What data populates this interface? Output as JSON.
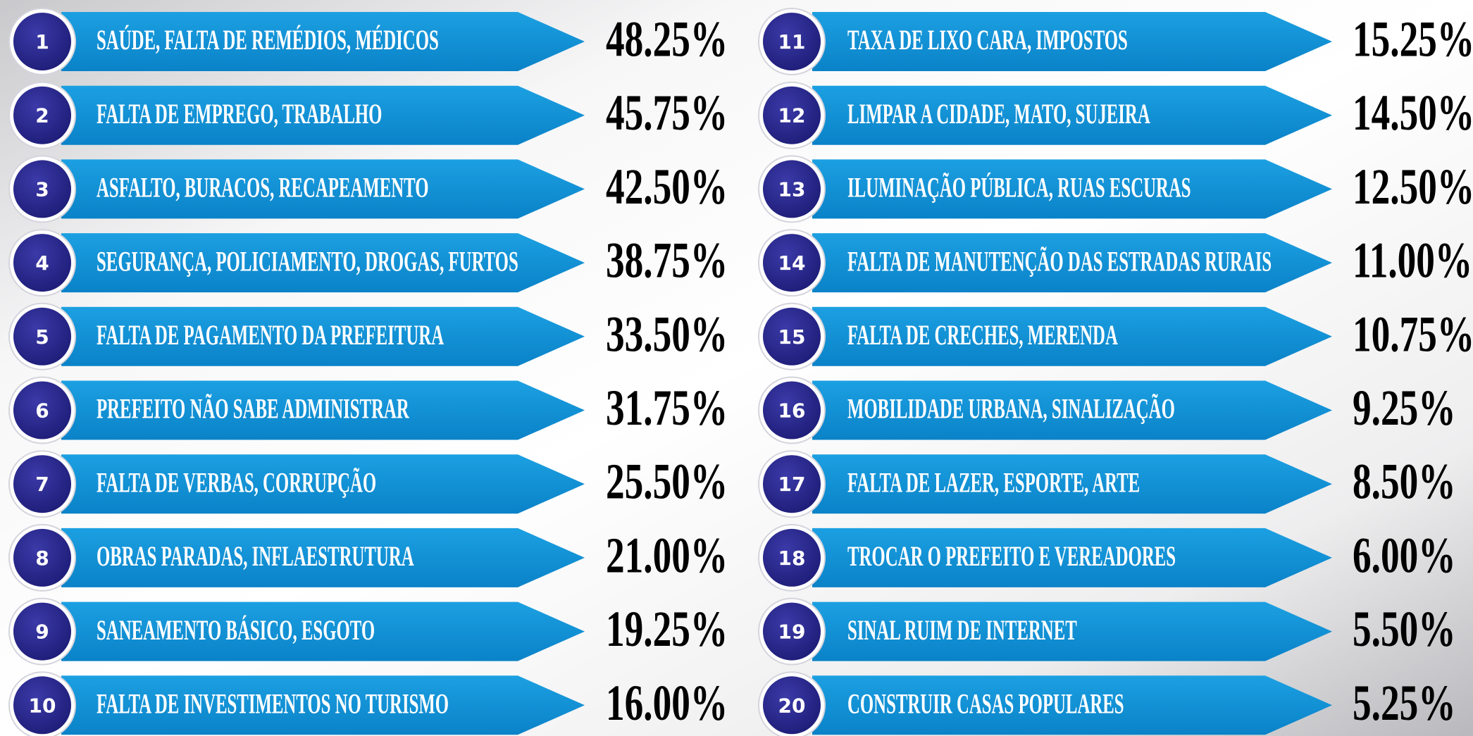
{
  "items": [
    {
      "rank": "1",
      "label": "SAÚDE, FALTA DE REMÉDIOS, MÉDICOS",
      "value": "48.25%"
    },
    {
      "rank": "2",
      "label": "FALTA DE EMPREGO, TRABALHO",
      "value": "45.75%"
    },
    {
      "rank": "3",
      "label": "ASFALTO, BURACOS, RECAPEAMENTO",
      "value": "42.50%"
    },
    {
      "rank": "4",
      "label": "SEGURANÇA, POLICIAMENTO, DROGAS, FURTOS",
      "value": "38.75%"
    },
    {
      "rank": "5",
      "label": "FALTA DE PAGAMENTO DA PREFEITURA",
      "value": "33.50%"
    },
    {
      "rank": "6",
      "label": "PREFEITO NÃO SABE ADMINISTRAR",
      "value": "31.75%"
    },
    {
      "rank": "7",
      "label": "FALTA DE VERBAS, CORRUPÇÃO",
      "value": "25.50%"
    },
    {
      "rank": "8",
      "label": "OBRAS PARADAS, INFLAESTRUTURA",
      "value": "21.00%"
    },
    {
      "rank": "9",
      "label": "SANEAMENTO BÁSICO, ESGOTO",
      "value": "19.25%"
    },
    {
      "rank": "10",
      "label": "FALTA DE INVESTIMENTOS NO TURISMO",
      "value": "16.00%"
    },
    {
      "rank": "11",
      "label": "TAXA DE LIXO CARA, IMPOSTOS",
      "value": "15.25%"
    },
    {
      "rank": "12",
      "label": "LIMPAR A CIDADE, MATO, SUJEIRA",
      "value": "14.50%"
    },
    {
      "rank": "13",
      "label": "ILUMINAÇÃO PÚBLICA, RUAS ESCURAS",
      "value": "12.50%"
    },
    {
      "rank": "14",
      "label": "FALTA DE MANUTENÇÃO DAS ESTRADAS RURAIS",
      "value": "11.00%"
    },
    {
      "rank": "15",
      "label": "FALTA DE CRECHES, MERENDA",
      "value": "10.75%"
    },
    {
      "rank": "16",
      "label": "MOBILIDADE URBANA, SINALIZAÇÃO",
      "value": "9.25%"
    },
    {
      "rank": "17",
      "label": "FALTA DE LAZER, ESPORTE, ARTE",
      "value": "8.50%"
    },
    {
      "rank": "18",
      "label": "TROCAR O PREFEITO E VEREADORES",
      "value": "6.00%"
    },
    {
      "rank": "19",
      "label": "SINAL RUIM DE INTERNET",
      "value": "5.50%"
    },
    {
      "rank": "20",
      "label": "CONSTRUIR CASAS POPULARES",
      "value": "5.25%"
    }
  ]
}
